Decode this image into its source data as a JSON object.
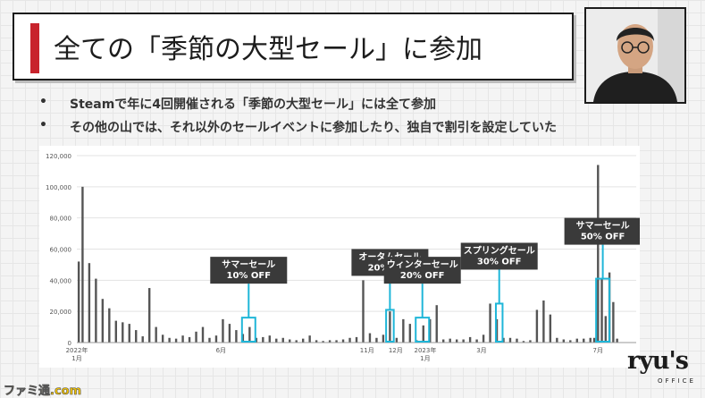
{
  "slide": {
    "title": "全ての「季節の大型セール」に参加",
    "bullets": [
      "Steamで年に4回開催される「季節の大型セール」には全て参加",
      "その他の山では、それ以外のセールイベントに参加したり、独自で割引を設定していた"
    ],
    "bullet_marker": "•"
  },
  "logo": {
    "text": "ryu's",
    "sub": "OFFICE"
  },
  "watermark": "ファミ通.com",
  "colors": {
    "bar": "#555555",
    "highlight": "#1fb6d8",
    "callout_bg": "#3a3a3a",
    "title_accent": "#c8232c"
  },
  "chart_data": {
    "type": "bar",
    "title": "",
    "xlabel": "",
    "ylabel": "",
    "ylim": [
      0,
      120000
    ],
    "yticks": [
      "0",
      "20,000",
      "40,000",
      "60,000",
      "80,000",
      "100,000",
      "120,000"
    ],
    "ytick_values": [
      0,
      20000,
      40000,
      60000,
      80000,
      100000,
      120000
    ],
    "grid": true,
    "x_start": "2022-01-01",
    "x_end": "2023-08-10",
    "xticks": [
      {
        "date": "2022-01-01",
        "lines": [
          "2022年",
          "1月"
        ]
      },
      {
        "date": "2022-06-01",
        "lines": [
          "6月"
        ]
      },
      {
        "date": "2022-11-01",
        "lines": [
          "11月"
        ]
      },
      {
        "date": "2022-12-01",
        "lines": [
          "12月"
        ]
      },
      {
        "date": "2023-01-01",
        "lines": [
          "2023年",
          "1月"
        ]
      },
      {
        "date": "2023-03-01",
        "lines": [
          "3月"
        ]
      },
      {
        "date": "2023-07-01",
        "lines": [
          "7月"
        ]
      }
    ],
    "series": [
      {
        "dates": [
          "2022-01-03",
          "2022-01-07",
          "2022-01-14",
          "2022-01-21",
          "2022-01-28",
          "2022-02-04",
          "2022-02-11",
          "2022-02-18",
          "2022-02-25",
          "2022-03-04",
          "2022-03-11",
          "2022-03-18",
          "2022-03-25",
          "2022-04-01",
          "2022-04-08",
          "2022-04-15",
          "2022-04-22",
          "2022-04-29",
          "2022-05-06",
          "2022-05-13",
          "2022-05-20",
          "2022-05-27",
          "2022-06-03",
          "2022-06-10",
          "2022-06-17",
          "2022-06-24",
          "2022-07-01",
          "2022-07-08",
          "2022-07-15",
          "2022-07-22",
          "2022-07-29",
          "2022-08-05",
          "2022-08-12",
          "2022-08-19",
          "2022-08-26",
          "2022-09-02",
          "2022-09-09",
          "2022-09-16",
          "2022-09-23",
          "2022-09-30",
          "2022-10-07",
          "2022-10-14",
          "2022-10-21",
          "2022-10-28",
          "2022-11-04",
          "2022-11-11",
          "2022-11-18",
          "2022-11-25",
          "2022-12-02",
          "2022-12-09",
          "2022-12-16",
          "2022-12-23",
          "2022-12-30",
          "2023-01-06",
          "2023-01-13",
          "2023-01-20",
          "2023-01-27",
          "2023-02-03",
          "2023-02-10",
          "2023-02-17",
          "2023-02-24",
          "2023-03-03",
          "2023-03-10",
          "2023-03-17",
          "2023-03-24",
          "2023-03-31",
          "2023-04-07",
          "2023-04-14",
          "2023-04-21",
          "2023-04-28",
          "2023-05-05",
          "2023-05-12",
          "2023-05-19",
          "2023-05-26",
          "2023-06-02",
          "2023-06-09",
          "2023-06-16",
          "2023-06-23",
          "2023-06-27",
          "2023-07-01",
          "2023-07-05",
          "2023-07-09",
          "2023-07-13",
          "2023-07-17",
          "2023-07-21"
        ],
        "values": [
          52000,
          100000,
          51000,
          41000,
          28000,
          22000,
          14000,
          13000,
          12000,
          8000,
          4000,
          35000,
          10000,
          5000,
          3000,
          2500,
          4500,
          3500,
          7000,
          10000,
          3000,
          4500,
          15000,
          12000,
          8000,
          5500,
          10000,
          3000,
          3500,
          4500,
          2500,
          3000,
          2000,
          1500,
          2500,
          4500,
          1500,
          1000,
          1500,
          1500,
          2000,
          3000,
          3500,
          40000,
          6000,
          3000,
          5000,
          20000,
          3000,
          15000,
          12000,
          1500,
          11000,
          15000,
          24000,
          2000,
          2500,
          2000,
          2000,
          3500,
          2000,
          5000,
          25000,
          15000,
          3000,
          3000,
          2500,
          1000,
          1500,
          21000,
          27000,
          18000,
          3000,
          2000,
          1500,
          2500,
          2500,
          3000,
          3000,
          114000,
          41000,
          17000,
          45000,
          26000,
          2500
        ]
      }
    ],
    "annotations": [
      {
        "lines": [
          "サマーセール",
          "10% OFF"
        ],
        "start": "2022-06-23",
        "end": "2022-07-07",
        "target_value": 16000
      },
      {
        "lines": [
          "オータムセール",
          "20% OFF"
        ],
        "start": "2022-11-21",
        "end": "2022-11-29",
        "target_value": 21000
      },
      {
        "lines": [
          "ウィンターセール",
          "20% OFF"
        ],
        "start": "2022-12-22",
        "end": "2023-01-05",
        "target_value": 16000
      },
      {
        "lines": [
          "スプリングセール",
          "30% OFF"
        ],
        "start": "2023-03-16",
        "end": "2023-03-23",
        "target_value": 25000
      },
      {
        "lines": [
          "サマーセール",
          "50% OFF"
        ],
        "start": "2023-06-29",
        "end": "2023-07-13",
        "target_value": 41000
      }
    ]
  }
}
